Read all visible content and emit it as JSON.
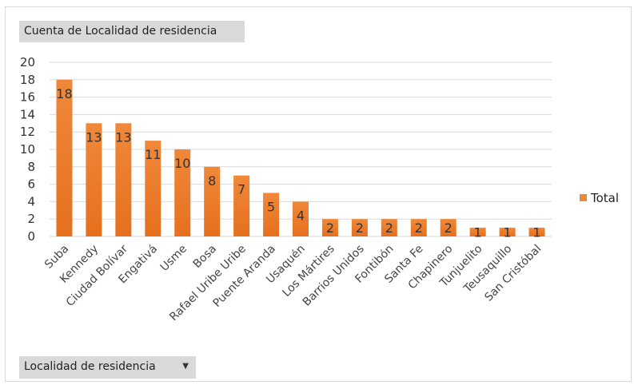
{
  "pivot": {
    "value_field": "Cuenta de Localidad de residencia",
    "axis_field": "Localidad de residencia",
    "axis_dropdown_icon": "dropdown-arrow-icon"
  },
  "colors": {
    "bar_top": "#f0883a",
    "bar_bottom": "#e5701e",
    "grid": "#d9d9d9"
  },
  "chart_data": {
    "type": "bar",
    "categories": [
      "Suba",
      "Kennedy",
      "Ciudad Bolívar",
      "Engativá",
      "Usme",
      "Bosa",
      "Rafael Uribe Uribe",
      "Puente Aranda",
      "Usaquén",
      "Los Mártires",
      "Barrios Unidos",
      "Fontibón",
      "Santa Fe",
      "Chapinero",
      "Tunjuelito",
      "Teusaquillo",
      "San Cristóbal"
    ],
    "series": [
      {
        "name": "Total",
        "values": [
          18,
          13,
          13,
          11,
          10,
          8,
          7,
          5,
          4,
          2,
          2,
          2,
          2,
          2,
          1,
          1,
          1
        ]
      }
    ],
    "ylim": [
      0,
      20
    ],
    "yticks": [
      0,
      2,
      4,
      6,
      8,
      10,
      12,
      14,
      16,
      18,
      20
    ],
    "grid": true,
    "legend_position": "right",
    "data_labels": true
  }
}
